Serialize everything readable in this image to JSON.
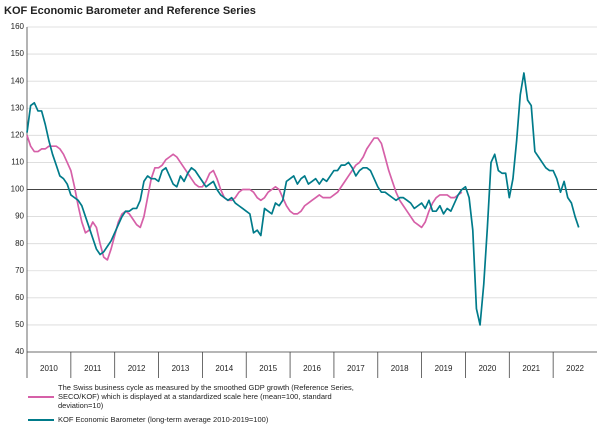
{
  "chart_data": {
    "type": "line",
    "title": "KOF Economic Barometer and Reference Series",
    "x": [
      2010,
      2010.083,
      2010.167,
      2010.25,
      2010.333,
      2010.417,
      2010.5,
      2010.583,
      2010.667,
      2010.75,
      2010.833,
      2010.917,
      2011,
      2011.083,
      2011.167,
      2011.25,
      2011.333,
      2011.417,
      2011.5,
      2011.583,
      2011.667,
      2011.75,
      2011.833,
      2011.917,
      2012,
      2012.083,
      2012.167,
      2012.25,
      2012.333,
      2012.417,
      2012.5,
      2012.583,
      2012.667,
      2012.75,
      2012.833,
      2012.917,
      2013,
      2013.083,
      2013.167,
      2013.25,
      2013.333,
      2013.417,
      2013.5,
      2013.583,
      2013.667,
      2013.75,
      2013.833,
      2013.917,
      2014,
      2014.083,
      2014.167,
      2014.25,
      2014.333,
      2014.417,
      2014.5,
      2014.583,
      2014.667,
      2014.75,
      2014.833,
      2014.917,
      2015,
      2015.083,
      2015.167,
      2015.25,
      2015.333,
      2015.417,
      2015.5,
      2015.583,
      2015.667,
      2015.75,
      2015.833,
      2015.917,
      2016,
      2016.083,
      2016.167,
      2016.25,
      2016.333,
      2016.417,
      2016.5,
      2016.583,
      2016.667,
      2016.75,
      2016.833,
      2016.917,
      2017,
      2017.083,
      2017.167,
      2017.25,
      2017.333,
      2017.417,
      2017.5,
      2017.583,
      2017.667,
      2017.75,
      2017.833,
      2017.917,
      2018,
      2018.083,
      2018.167,
      2018.25,
      2018.333,
      2018.417,
      2018.5,
      2018.583,
      2018.667,
      2018.75,
      2018.833,
      2018.917,
      2019,
      2019.083,
      2019.167,
      2019.25,
      2019.333,
      2019.417,
      2019.5,
      2019.583,
      2019.667,
      2019.75,
      2019.833,
      2019.917,
      2020,
      2020.083,
      2020.167,
      2020.25,
      2020.333,
      2020.417,
      2020.5,
      2020.583,
      2020.667,
      2020.75,
      2020.833,
      2020.917,
      2021,
      2021.083,
      2021.167,
      2021.25,
      2021.333,
      2021.417,
      2021.5,
      2021.583,
      2021.667,
      2021.75,
      2021.833,
      2021.917,
      2022,
      2022.083,
      2022.167,
      2022.25,
      2022.333,
      2022.417,
      2022.5,
      2022.583
    ],
    "series": [
      {
        "name": "The Swiss business cycle as measured by the smoothed GDP growth (Reference Series, SECO/KOF) which is displayed at a standardized scale here (mean=100, standard deviation=10)",
        "color": "#d660a8",
        "values": [
          120,
          116,
          114,
          114,
          115,
          115,
          116,
          116,
          116,
          115,
          113,
          110,
          107,
          101,
          94,
          88,
          84,
          85,
          88,
          86,
          80,
          75,
          74,
          78,
          83,
          88,
          91,
          92,
          91,
          89,
          87,
          86,
          90,
          97,
          104,
          108,
          108,
          109,
          111,
          112,
          113,
          112,
          110,
          108,
          106,
          104,
          102,
          101,
          101,
          103,
          106,
          107,
          104,
          100,
          97,
          96,
          96,
          97,
          99,
          100,
          100,
          100,
          99,
          97,
          96,
          97,
          99,
          100,
          101,
          100,
          97,
          94,
          92,
          91,
          91,
          92,
          94,
          95,
          96,
          97,
          98,
          97,
          97,
          97,
          98,
          99,
          101,
          103,
          105,
          107,
          109,
          110,
          112,
          115,
          117,
          119,
          119,
          117,
          112,
          107,
          103,
          99,
          96,
          94,
          92,
          90,
          88,
          87,
          86,
          88,
          92,
          95,
          97,
          98,
          98,
          98,
          97,
          97,
          98,
          99,
          null,
          null,
          null,
          null,
          null,
          null,
          null,
          null,
          null,
          null,
          null,
          null,
          null,
          null,
          null,
          null,
          null,
          null,
          null,
          null,
          null,
          null,
          null,
          null,
          null,
          null,
          null,
          null,
          null,
          null,
          null,
          null
        ]
      },
      {
        "name": "KOF Economic Barometer (long-term average 2010-2019=100)",
        "color": "#007b8a",
        "values": [
          121,
          131,
          132,
          129,
          129,
          124,
          118,
          113,
          109,
          105,
          104,
          102,
          98,
          97,
          96,
          94,
          90,
          86,
          82,
          78,
          76,
          77,
          79,
          81,
          84,
          87,
          90,
          92,
          92,
          93,
          93,
          96,
          103,
          105,
          104,
          104,
          103,
          107,
          108,
          105,
          102,
          101,
          105,
          103,
          106,
          108,
          107,
          105,
          103,
          101,
          102,
          103,
          100,
          98,
          97,
          96,
          97,
          95,
          94,
          93,
          92,
          91,
          84,
          85,
          83,
          93,
          92,
          91,
          95,
          94,
          96,
          103,
          104,
          105,
          102,
          104,
          105,
          102,
          103,
          104,
          102,
          104,
          103,
          105,
          107,
          107,
          109,
          109,
          110,
          108,
          105,
          107,
          108,
          108,
          107,
          104,
          101,
          99,
          99,
          98,
          97,
          96,
          97,
          97,
          96,
          95,
          93,
          94,
          95,
          93,
          96,
          92,
          92,
          94,
          91,
          93,
          92,
          95,
          98,
          100,
          101,
          97,
          85,
          56,
          50,
          65,
          86,
          110,
          113,
          107,
          106,
          106,
          97,
          104,
          118,
          135,
          143,
          133,
          131,
          114,
          112,
          110,
          108,
          107,
          107,
          104,
          99,
          103,
          97,
          95,
          90,
          86
        ]
      }
    ],
    "hline": 100,
    "xlim": [
      2010,
      2023
    ],
    "xticks": [
      2010,
      2011,
      2012,
      2013,
      2014,
      2015,
      2016,
      2017,
      2018,
      2019,
      2020,
      2021,
      2022
    ],
    "ylim": [
      40,
      160
    ],
    "yticks": [
      40,
      50,
      60,
      70,
      80,
      90,
      100,
      110,
      120,
      130,
      140,
      150,
      160
    ],
    "grid": true
  }
}
